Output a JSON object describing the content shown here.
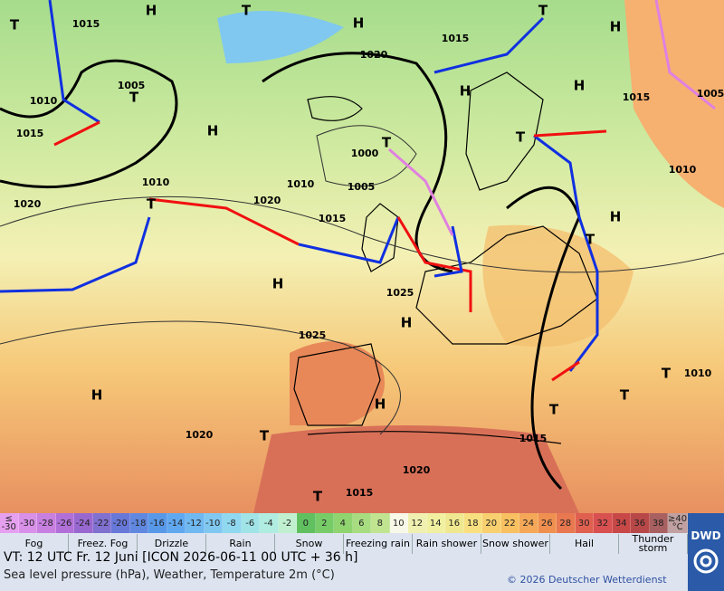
{
  "map": {
    "labels": [
      {
        "text": "1015",
        "kind": "isobar"
      },
      {
        "text": "1010",
        "kind": "isobar"
      },
      {
        "text": "1015",
        "kind": "isobar"
      },
      {
        "text": "1020",
        "kind": "isobar"
      },
      {
        "text": "1005",
        "kind": "isobar"
      },
      {
        "text": "1010",
        "kind": "isobar"
      },
      {
        "text": "1020",
        "kind": "isobar"
      },
      {
        "text": "1010",
        "kind": "isobar"
      },
      {
        "text": "1000",
        "kind": "isobar"
      },
      {
        "text": "1005",
        "kind": "isobar"
      },
      {
        "text": "1015",
        "kind": "isobar"
      },
      {
        "text": "1020",
        "kind": "isobar"
      },
      {
        "text": "1015",
        "kind": "isobar"
      },
      {
        "text": "1015",
        "kind": "isobar"
      },
      {
        "text": "1010",
        "kind": "isobar"
      },
      {
        "text": "1005",
        "kind": "isobar"
      },
      {
        "text": "1025",
        "kind": "isobar"
      },
      {
        "text": "1025",
        "kind": "isobar"
      },
      {
        "text": "1020",
        "kind": "isobar"
      },
      {
        "text": "1015",
        "kind": "isobar"
      },
      {
        "text": "1020",
        "kind": "isobar"
      },
      {
        "text": "1015",
        "kind": "isobar"
      },
      {
        "text": "1010",
        "kind": "isobar"
      },
      {
        "text": "H",
        "kind": "center"
      },
      {
        "text": "T",
        "kind": "center"
      },
      {
        "text": "H",
        "kind": "center"
      },
      {
        "text": "T",
        "kind": "center"
      },
      {
        "text": "H",
        "kind": "center"
      },
      {
        "text": "T",
        "kind": "center"
      },
      {
        "text": "T",
        "kind": "center"
      },
      {
        "text": "H",
        "kind": "center"
      },
      {
        "text": "H",
        "kind": "center"
      },
      {
        "text": "H",
        "kind": "center"
      },
      {
        "text": "T",
        "kind": "center"
      },
      {
        "text": "T",
        "kind": "center"
      },
      {
        "text": "T",
        "kind": "center"
      },
      {
        "text": "H",
        "kind": "center"
      },
      {
        "text": "T",
        "kind": "center"
      },
      {
        "text": "H",
        "kind": "center"
      },
      {
        "text": "H",
        "kind": "center"
      },
      {
        "text": "H",
        "kind": "center"
      },
      {
        "text": "H",
        "kind": "center"
      },
      {
        "text": "T",
        "kind": "center"
      },
      {
        "text": "T",
        "kind": "center"
      },
      {
        "text": "T",
        "kind": "center"
      },
      {
        "text": "T",
        "kind": "center"
      },
      {
        "text": "T",
        "kind": "center"
      }
    ]
  },
  "scale": {
    "values": [
      "≤ -30",
      -30,
      -28,
      -26,
      -24,
      -22,
      -20,
      -18,
      -16,
      -14,
      -12,
      -10,
      -8,
      -6,
      -4,
      -2,
      0,
      2,
      4,
      6,
      8,
      10,
      12,
      14,
      16,
      18,
      20,
      22,
      24,
      26,
      28,
      30,
      32,
      34,
      36,
      38,
      "≥40 °C"
    ],
    "colors": [
      "#e6a0f0",
      "#d890e8",
      "#c880e0",
      "#b070d8",
      "#9868d0",
      "#8070d0",
      "#6878d8",
      "#6088e0",
      "#5898e8",
      "#60a8f0",
      "#70b8f0",
      "#80c8f0",
      "#90d8f0",
      "#a0e4e8",
      "#b0ece0",
      "#c0f0d0",
      "#60c060",
      "#78cc68",
      "#90d470",
      "#a8dc80",
      "#c0e490",
      "#f8f8e8",
      "#f0f0b0",
      "#f0f0a0",
      "#f0e890",
      "#f8e080",
      "#f8d070",
      "#f8c060",
      "#f4a858",
      "#f09050",
      "#e87850",
      "#e06050",
      "#d85050",
      "#c84848",
      "#b84848",
      "#a86060",
      "#c0a0a0"
    ]
  },
  "legend": [
    "Fog",
    "Freez. Fog",
    "Drizzle",
    "Rain",
    "Snow",
    "Freezing rain",
    "Rain shower",
    "Snow shower",
    "Hail",
    "Thunder storm"
  ],
  "footer": {
    "valid": "VT: 12 UTC Fr.  12 Juni [ICON 2026-06-11  00 UTC + 36 h]",
    "description": "Sea level pressure (hPa), Weather, Temperature 2m (°C)",
    "copyright": "© 2026 Deutscher Wetterdienst",
    "logo": "DWD"
  }
}
